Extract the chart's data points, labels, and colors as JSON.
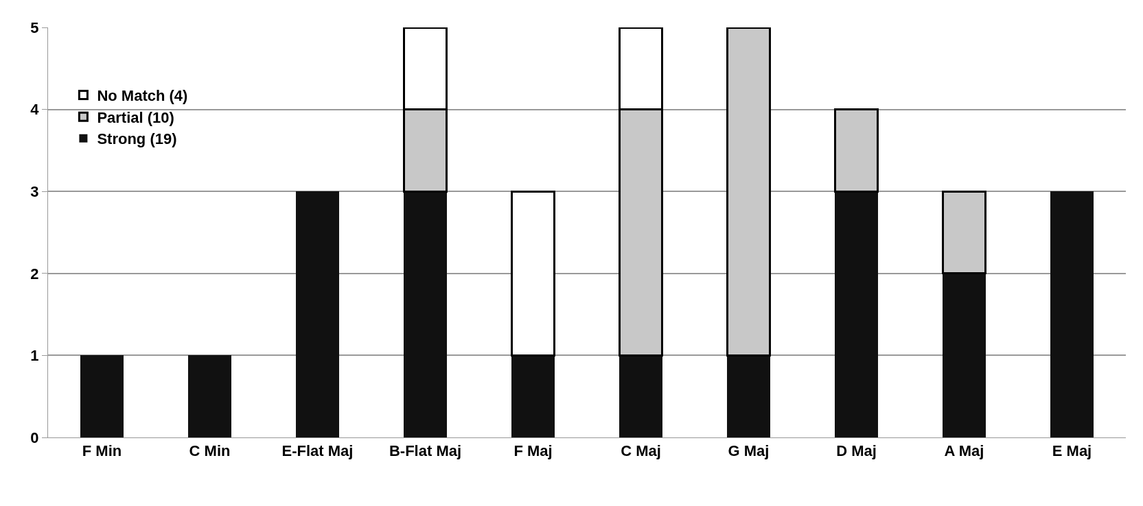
{
  "chart_data": {
    "type": "bar",
    "stacked": true,
    "categories": [
      "F Min",
      "C Min",
      "E-Flat Maj",
      "B-Flat Maj",
      "F Maj",
      "C Maj",
      "G Maj",
      "D Maj",
      "A Maj",
      "E Maj"
    ],
    "series": [
      {
        "name": "Strong (19)",
        "color": "#111111",
        "values": [
          1,
          1,
          3,
          3,
          1,
          1,
          1,
          3,
          2,
          3
        ]
      },
      {
        "name": "Partial (10)",
        "color": "#c8c8c8",
        "values": [
          0,
          0,
          0,
          1,
          0,
          3,
          4,
          1,
          1,
          0
        ]
      },
      {
        "name": "No Match (4)",
        "color": "#ffffff",
        "values": [
          0,
          0,
          0,
          1,
          2,
          1,
          0,
          0,
          0,
          0
        ]
      }
    ],
    "ylim": [
      0,
      5
    ],
    "yticks": [
      0,
      1,
      2,
      3,
      4,
      5
    ],
    "grid": "y",
    "legend": "top left"
  }
}
